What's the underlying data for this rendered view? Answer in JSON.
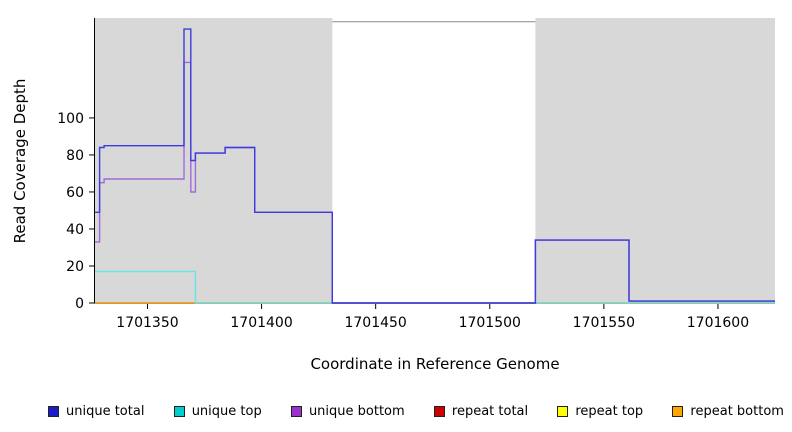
{
  "chart_data": {
    "type": "line",
    "step": true,
    "title": "",
    "xlabel": "Coordinate in Reference Genome",
    "ylabel": "Read Coverage Depth",
    "xlim": [
      1701327,
      1701625
    ],
    "ylim": [
      0,
      154
    ],
    "x_ticks": [
      1701350,
      1701400,
      1701450,
      1701500,
      1701550,
      1701600
    ],
    "y_ticks": [
      0,
      20,
      40,
      60,
      80,
      100
    ],
    "grid": false,
    "legend_position": "bottom",
    "background_color": "#ffffff",
    "shaded_color": "#d8d8d8",
    "shaded_regions": [
      [
        1701327,
        1701431
      ],
      [
        1701520,
        1701625
      ]
    ],
    "gap_top_line": {
      "x1": 1701431,
      "x2": 1701520,
      "y": 152,
      "color": "#888888"
    },
    "series": [
      {
        "name": "repeat total",
        "color": "#cc2222",
        "points": [
          [
            1701327,
            0
          ],
          [
            1701625,
            0
          ]
        ]
      },
      {
        "name": "repeat top",
        "color": "#f0e040",
        "points": [
          [
            1701327,
            0
          ],
          [
            1701625,
            0
          ]
        ]
      },
      {
        "name": "repeat bottom",
        "color": "#f0a030",
        "points": [
          [
            1701327,
            0
          ],
          [
            1701625,
            0
          ]
        ]
      },
      {
        "name": "unique top",
        "color": "#6fe2e6",
        "points": [
          [
            1701327,
            17
          ],
          [
            1701371,
            17
          ],
          [
            1701371,
            0
          ],
          [
            1701625,
            0
          ]
        ]
      },
      {
        "name": "unique bottom",
        "color": "#a06ad8",
        "points": [
          [
            1701327,
            33
          ],
          [
            1701329,
            33
          ],
          [
            1701329,
            65
          ],
          [
            1701331,
            65
          ],
          [
            1701331,
            67
          ],
          [
            1701366,
            67
          ],
          [
            1701366,
            130
          ],
          [
            1701369,
            130
          ],
          [
            1701369,
            60
          ],
          [
            1701371,
            60
          ],
          [
            1701371,
            81
          ],
          [
            1701384,
            81
          ],
          [
            1701384,
            84
          ],
          [
            1701397,
            84
          ],
          [
            1701397,
            49
          ],
          [
            1701431,
            49
          ],
          [
            1701431,
            0
          ],
          [
            1701520,
            0
          ],
          [
            1701520,
            34
          ],
          [
            1701561,
            34
          ],
          [
            1701561,
            1
          ],
          [
            1701625,
            1
          ]
        ]
      },
      {
        "name": "unique total",
        "color": "#3c3cdc",
        "points": [
          [
            1701327,
            49
          ],
          [
            1701329,
            49
          ],
          [
            1701329,
            84
          ],
          [
            1701331,
            84
          ],
          [
            1701331,
            85
          ],
          [
            1701366,
            85
          ],
          [
            1701366,
            148
          ],
          [
            1701369,
            148
          ],
          [
            1701369,
            77
          ],
          [
            1701371,
            77
          ],
          [
            1701371,
            81
          ],
          [
            1701384,
            81
          ],
          [
            1701384,
            84
          ],
          [
            1701397,
            84
          ],
          [
            1701397,
            49
          ],
          [
            1701431,
            49
          ],
          [
            1701431,
            0
          ],
          [
            1701520,
            0
          ],
          [
            1701520,
            34
          ],
          [
            1701561,
            34
          ],
          [
            1701561,
            1
          ],
          [
            1701625,
            1
          ]
        ]
      }
    ],
    "legend": [
      {
        "label": "unique total",
        "color": "#1c1ccc"
      },
      {
        "label": "unique top",
        "color": "#00cccc"
      },
      {
        "label": "unique bottom",
        "color": "#9933cc"
      },
      {
        "label": "repeat total",
        "color": "#cc0000"
      },
      {
        "label": "repeat top",
        "color": "#ffff00"
      },
      {
        "label": "repeat bottom",
        "color": "#ffa500"
      }
    ]
  }
}
